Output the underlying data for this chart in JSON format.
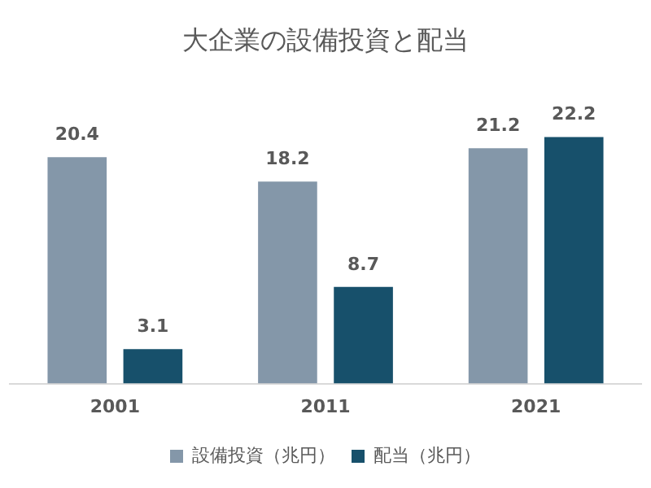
{
  "chart_data": {
    "type": "bar",
    "title": "大企業の設備投資と配当",
    "categories": [
      "2001",
      "2011",
      "2021"
    ],
    "series": [
      {
        "name": "設備投資（兆円）",
        "color": "#8497a9",
        "values": [
          20.4,
          18.2,
          21.2
        ]
      },
      {
        "name": "配当（兆円）",
        "color": "#17506b",
        "values": [
          3.1,
          8.7,
          22.2
        ]
      }
    ],
    "data_labels": true,
    "legend": "bottom",
    "grid": false
  }
}
